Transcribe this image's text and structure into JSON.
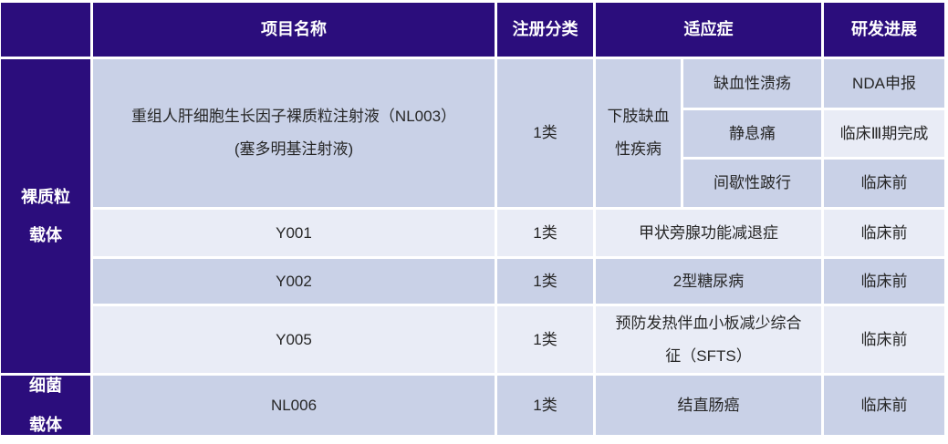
{
  "colors": {
    "header_bg": "#2B0D7C",
    "row_dark": "#C9D1E7",
    "row_light": "#E9ECF6",
    "header_text": "#FFFFFF",
    "body_text": "#262626"
  },
  "table": {
    "header": {
      "project": "项目名称",
      "registration": "注册分类",
      "indication": "适应症",
      "progress": "研发进展"
    },
    "categories": [
      {
        "label": "裸质粒\n载体"
      },
      {
        "label": "细菌\n载体"
      }
    ],
    "rows": [
      {
        "project": "重组人肝细胞生长因子裸质粒注射液（NL003）\n(塞多明基注射液)",
        "registration": "1类",
        "indication_group": "下肢缺血\n性疾病",
        "sub_indications": [
          {
            "indication": "缺血性溃疡",
            "progress": "NDA申报"
          },
          {
            "indication": "静息痛",
            "progress": "临床Ⅲ期完成"
          },
          {
            "indication": "间歇性跛行",
            "progress": "临床前"
          }
        ]
      },
      {
        "project": "Y001",
        "registration": "1类",
        "indication": "甲状旁腺功能减退症",
        "progress": "临床前"
      },
      {
        "project": "Y002",
        "registration": "1类",
        "indication": "2型糖尿病",
        "progress": "临床前"
      },
      {
        "project": "Y005",
        "registration": "1类",
        "indication": "预防发热伴血小板减少综合征（SFTS）",
        "progress": "临床前"
      },
      {
        "project": "NL006",
        "registration": "1类",
        "indication": "结直肠癌",
        "progress": "临床前"
      }
    ]
  }
}
